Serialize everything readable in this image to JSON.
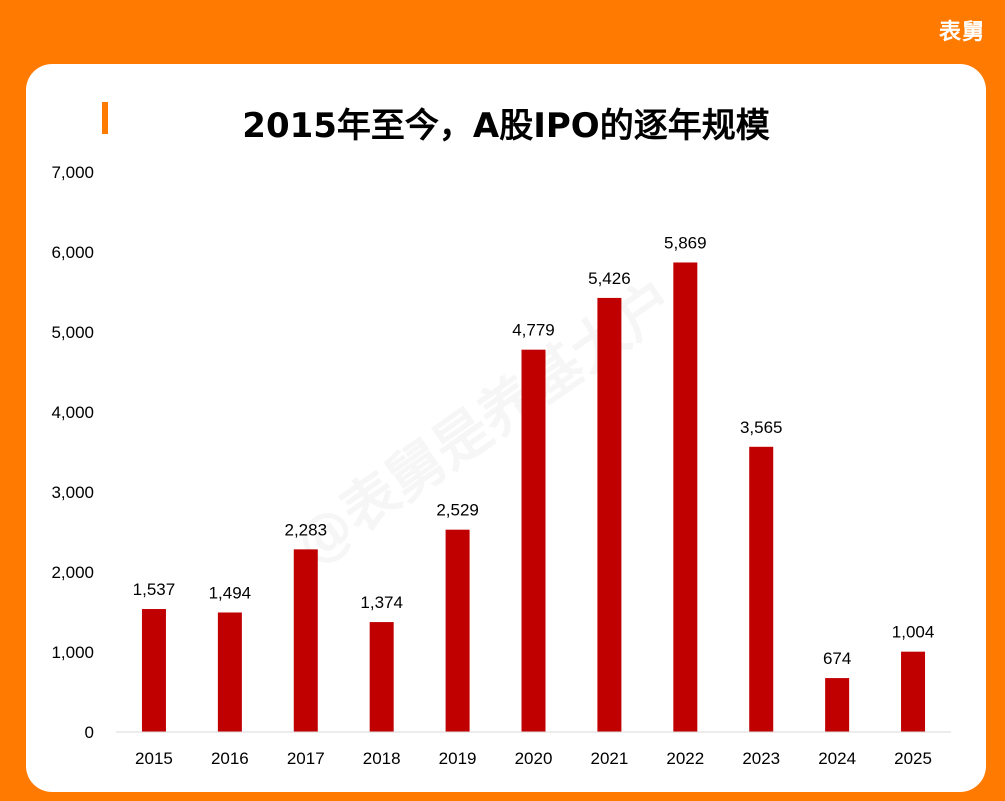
{
  "brand": {
    "logo_text": "表舅"
  },
  "chart_data": {
    "type": "bar",
    "title": "2015年至今，A股IPO的逐年规模",
    "categories": [
      "2015",
      "2016",
      "2017",
      "2018",
      "2019",
      "2020",
      "2021",
      "2022",
      "2023",
      "2024",
      "2025"
    ],
    "values": [
      1537,
      1494,
      2283,
      1374,
      2529,
      4779,
      5426,
      5869,
      3565,
      674,
      1004
    ],
    "value_labels": [
      "1,537",
      "1,494",
      "2,283",
      "1,374",
      "2,529",
      "4,779",
      "5,426",
      "5,869",
      "3,565",
      "674",
      "1,004"
    ],
    "ylim": [
      0,
      7000
    ],
    "yticks": [
      0,
      1000,
      2000,
      3000,
      4000,
      5000,
      6000,
      7000
    ],
    "ytick_labels": [
      "0",
      "1,000",
      "2,000",
      "3,000",
      "4,000",
      "5,000",
      "6,000",
      "7,000"
    ],
    "xlabel": "",
    "ylabel": "",
    "grid": false,
    "bar_color": "#c00000"
  },
  "watermark": "@表舅是养基大户",
  "colors": {
    "background": "#ff7a00",
    "card": "#ffffff",
    "accent": "#ff7a00"
  }
}
